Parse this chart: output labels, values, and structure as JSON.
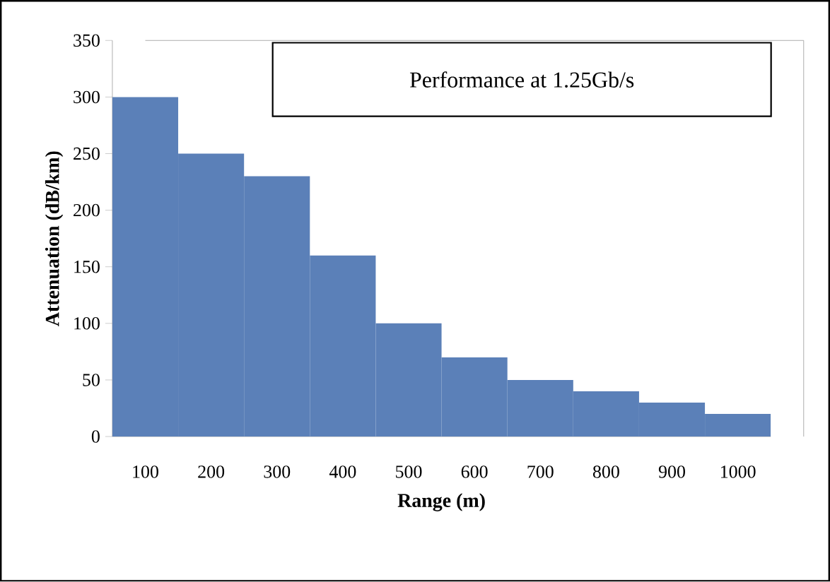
{
  "chart_data": {
    "type": "bar",
    "title": "Performance at 1.25Gb/s",
    "xlabel": "Range (m)",
    "ylabel": "Attenuation (dB/km)",
    "categories": [
      "100",
      "200",
      "300",
      "400",
      "500",
      "600",
      "700",
      "800",
      "900",
      "1000"
    ],
    "values": [
      300,
      250,
      230,
      160,
      100,
      70,
      50,
      40,
      30,
      20
    ],
    "color": "#5b80b8",
    "ylim": [
      0,
      350
    ],
    "yticks": [
      0,
      50,
      100,
      150,
      200,
      250,
      300,
      350
    ],
    "grid": false
  }
}
